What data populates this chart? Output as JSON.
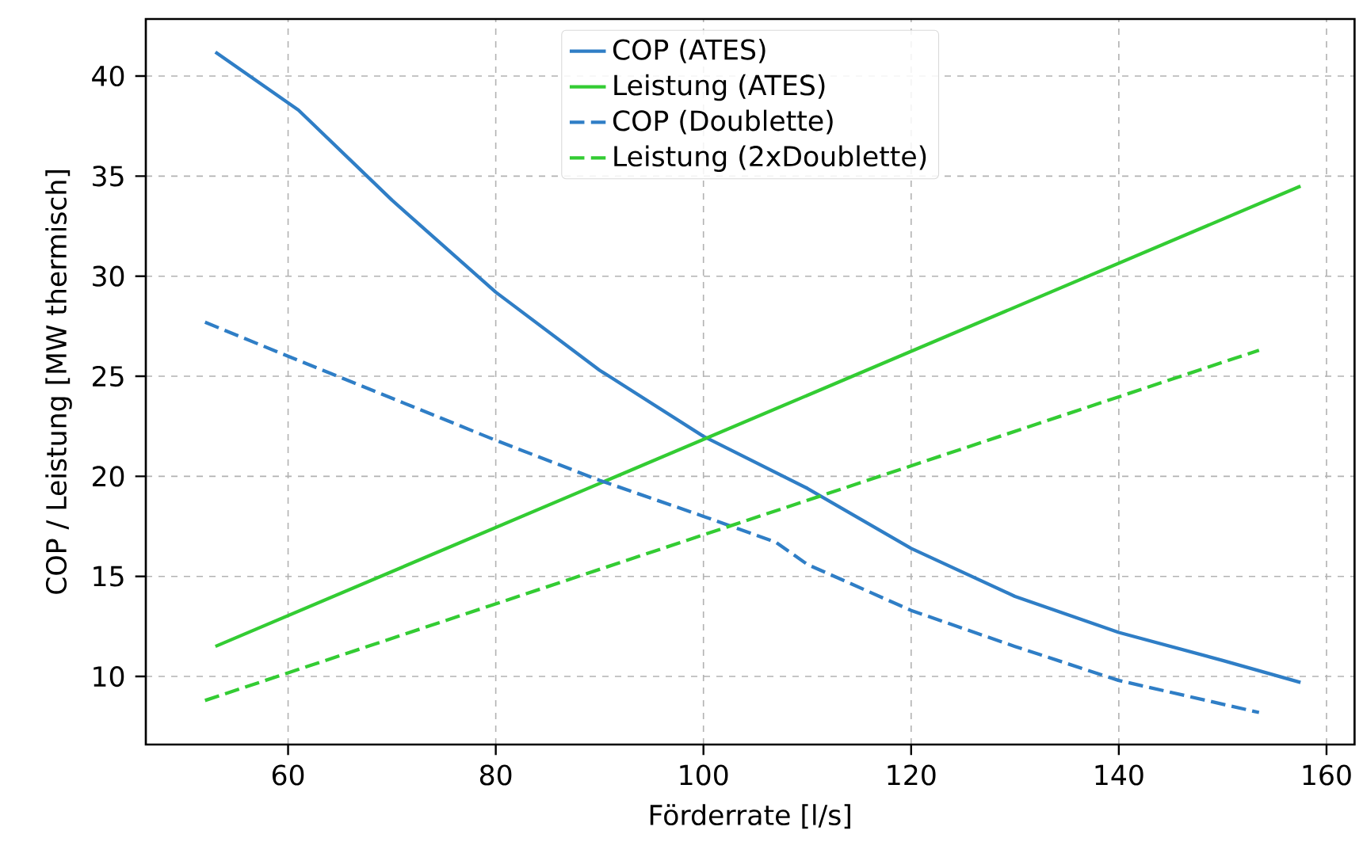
{
  "chart_data": {
    "type": "line",
    "xlabel": "Förderrate [l/s]",
    "ylabel": "COP / Leistung [MW thermisch]",
    "xlim": [
      46.3,
      162.7
    ],
    "ylim": [
      6.6,
      42.85
    ],
    "xticks": [
      60,
      80,
      100,
      120,
      140,
      160
    ],
    "yticks": [
      10,
      15,
      20,
      25,
      30,
      35,
      40
    ],
    "grid": true,
    "legend": "top",
    "series": [
      {
        "name": "COP (ATES)",
        "color": "#2f7ec6",
        "line_style": "solid",
        "x": [
          53,
          61,
          70,
          80,
          90,
          100,
          110,
          120,
          130,
          140,
          150,
          157.5
        ],
        "values": [
          41.2,
          38.3,
          33.8,
          29.2,
          25.3,
          22.0,
          19.4,
          16.4,
          14.0,
          12.2,
          10.8,
          9.7
        ]
      },
      {
        "name": "Leistung (ATES)",
        "color": "#33cc33",
        "line_style": "solid",
        "x": [
          53,
          157.5
        ],
        "values": [
          11.5,
          34.5
        ]
      },
      {
        "name": "COP (Doublette)",
        "color": "#2f7ec6",
        "line_style": "dashed",
        "x": [
          52,
          60,
          70,
          80,
          90,
          100,
          107,
          110,
          120,
          130,
          140,
          153.5
        ],
        "values": [
          27.7,
          26.0,
          23.9,
          21.8,
          19.8,
          18.0,
          16.7,
          15.6,
          13.3,
          11.5,
          9.8,
          8.2
        ]
      },
      {
        "name": "Leistung (2xDoublette)",
        "color": "#33cc33",
        "line_style": "dashed",
        "x": [
          52,
          153.5
        ],
        "values": [
          8.8,
          26.3
        ]
      }
    ]
  }
}
